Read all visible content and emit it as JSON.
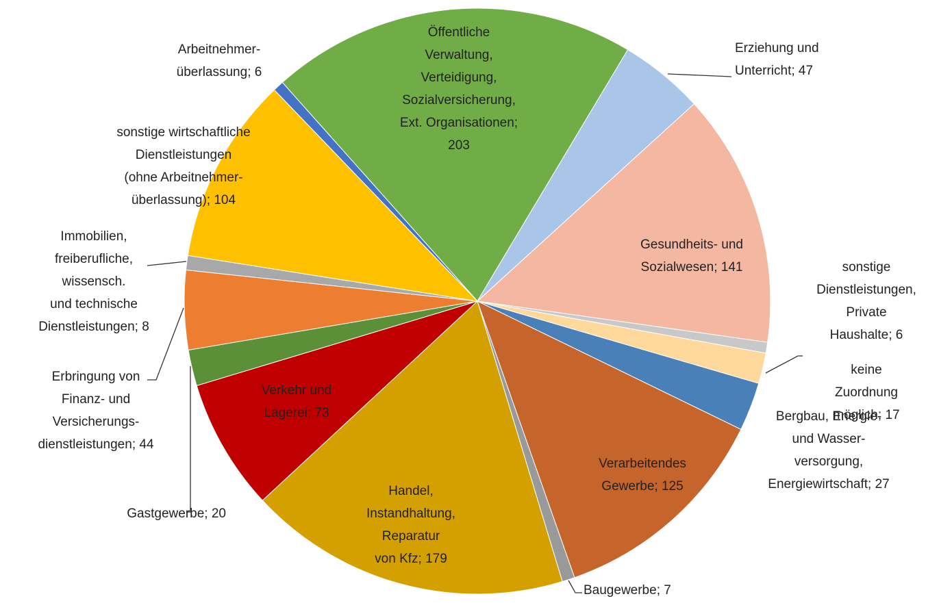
{
  "chart_data": {
    "type": "pie",
    "categories": [
      "Öffentliche\nVerwaltung,\nVerteidigung,\nSozialversicherung,\nExt. Organisationen",
      "Erziehung und\nUnterricht",
      "Gesundheits- und\nSozialwesen",
      "sonstige\nDienstleistungen,\nPrivate Haushalte",
      "keine Zuordnung\nmöglich",
      "Bergbau, Energie-\nund Wasser-\nversorgung,\nEnergiewirtschaft",
      "Verarbeitendes\nGewerbe",
      "Baugewerbe",
      "Handel,\nInstandhaltung,\nReparatur\nvon Kfz",
      "Verkehr und\nLagerei",
      "Gastgewerbe",
      "Erbringung von\nFinanz- und\nVersicherungs-\ndienstleistungen",
      "Immobilien,\nfreiberufliche,\nwissensch.\nund technische\nDienstleistungen",
      "sonstige wirtschaftliche\nDienstleistungen\n(ohne Arbeitnehmer-\nüberlassung)",
      "Arbeitnehmer-\nüberlassung"
    ],
    "values": [
      203,
      47,
      141,
      6,
      17,
      27,
      125,
      7,
      179,
      73,
      20,
      44,
      8,
      104,
      6
    ],
    "colors": [
      "#70ad47",
      "#a9c5e8",
      "#f4b8a2",
      "#c8c8c8",
      "#ffd89c",
      "#4a80b8",
      "#c5642b",
      "#999999",
      "#d4a000",
      "#c00000",
      "#5b9038",
      "#ed7d31",
      "#a8a8a8",
      "#ffc000",
      "#4472c4"
    ]
  }
}
